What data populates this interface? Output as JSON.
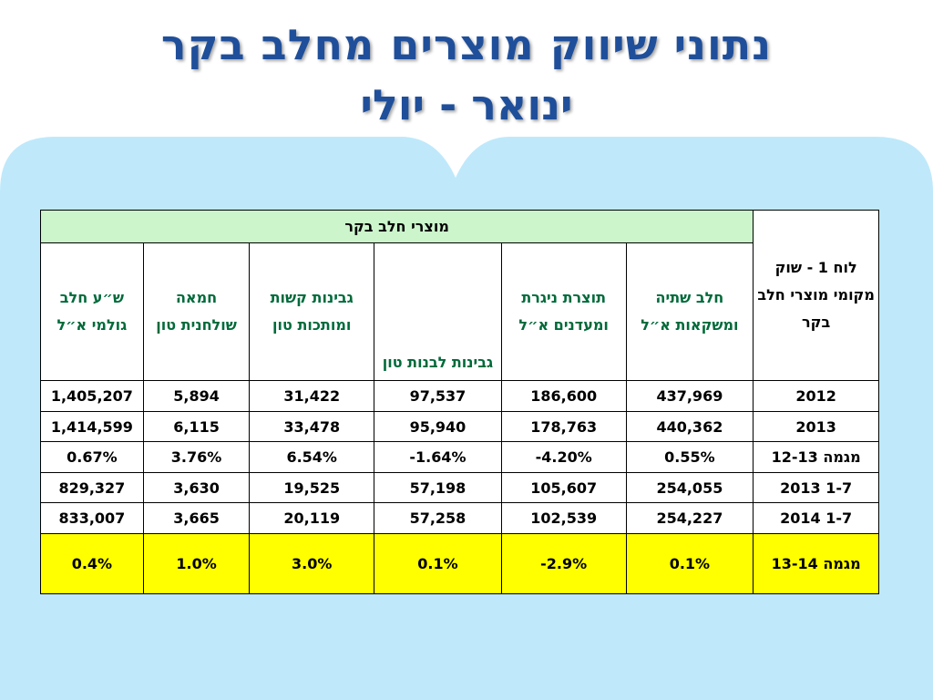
{
  "title": {
    "line1": "נתוני שיווק מוצרים מחלב בקר",
    "line2": "ינואר - יולי"
  },
  "table": {
    "corner_label": "לוח 1 - שוק מקומי מוצרי חלב בקר",
    "group_header": "מוצרי חלב בקר",
    "columns": [
      "חלב שתיה ומשקאות א״ל",
      "תוצרת ניגרת ומעדנים א״ל",
      "גבינות לבנות טון",
      "גבינות קשות ומותכות טון",
      "חמאה שולחנית טון",
      "ש״ע חלב גולמי א״ל"
    ],
    "rows": [
      {
        "label": "2012",
        "values": [
          "437,969",
          "186,600",
          "97,537",
          "31,422",
          "5,894",
          "1,405,207"
        ]
      },
      {
        "label": "2013",
        "values": [
          "440,362",
          "178,763",
          "95,940",
          "33,478",
          "6,115",
          "1,414,599"
        ]
      },
      {
        "label": "מגמה 12-13",
        "values": [
          "0.55%",
          "-4.20%",
          "-1.64%",
          "6.54%",
          "3.76%",
          "0.67%"
        ]
      },
      {
        "label": "1-7  2013",
        "values": [
          "254,055",
          "105,607",
          "57,198",
          "19,525",
          "3,630",
          "829,327"
        ]
      },
      {
        "label": "1-7 2014",
        "values": [
          "254,227",
          "102,539",
          "57,258",
          "20,119",
          "3,665",
          "833,007"
        ]
      },
      {
        "label": "מגמה  13-14",
        "values": [
          "0.1%",
          "-2.9%",
          "0.1%",
          "3.0%",
          "1.0%",
          "0.4%"
        ]
      }
    ]
  },
  "colors": {
    "title": "#1f4f9a",
    "panel": "#bfe9fb",
    "header_group": "#ccf5cc",
    "header_text": "#006a3a",
    "highlight_row": "#ffff00"
  }
}
